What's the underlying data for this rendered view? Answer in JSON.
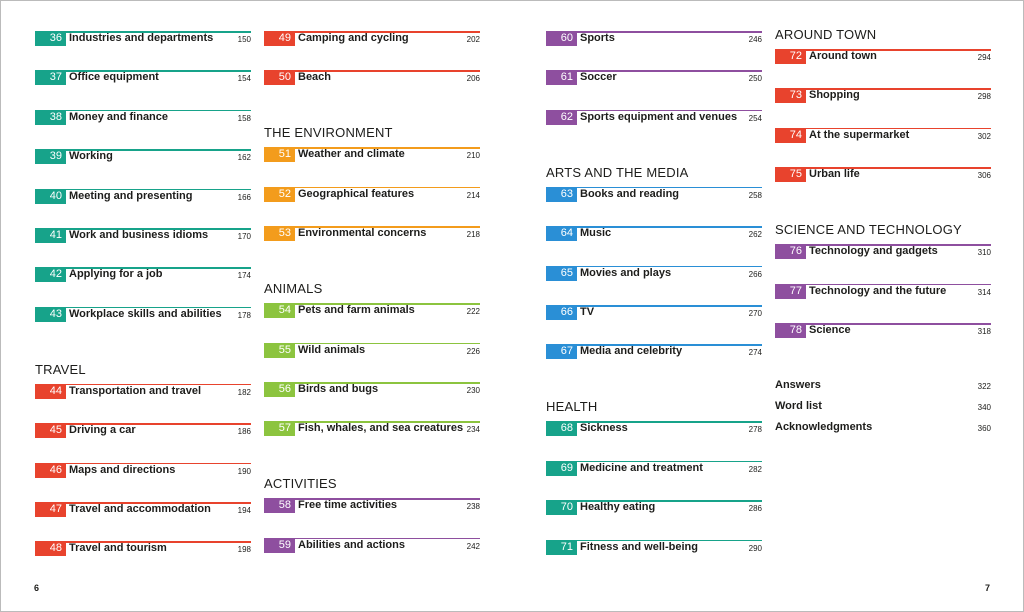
{
  "columns": [
    {
      "sections": [
        {
          "color": "#17a38a",
          "entries": [
            {
              "number": 36,
              "title": "Industries and departments",
              "page": 150
            },
            {
              "number": 37,
              "title": "Office equipment",
              "page": 154
            },
            {
              "number": 38,
              "title": "Money and finance",
              "page": 158
            },
            {
              "number": 39,
              "title": "Working",
              "page": 162
            },
            {
              "number": 40,
              "title": "Meeting and presenting",
              "page": 166
            },
            {
              "number": 41,
              "title": "Work and business idioms",
              "page": 170
            },
            {
              "number": 42,
              "title": "Applying for a job",
              "page": 174
            },
            {
              "number": 43,
              "title": "Workplace skills and abilities",
              "page": 178
            }
          ]
        },
        {
          "heading": "TRAVEL",
          "color": "#e8432d",
          "entries": [
            {
              "number": 44,
              "title": "Transportation and travel",
              "page": 182
            },
            {
              "number": 45,
              "title": "Driving a car",
              "page": 186
            },
            {
              "number": 46,
              "title": "Maps and directions",
              "page": 190
            },
            {
              "number": 47,
              "title": "Travel and accommodation",
              "page": 194
            },
            {
              "number": 48,
              "title": "Travel and tourism",
              "page": 198
            }
          ]
        }
      ]
    },
    {
      "sections": [
        {
          "color": "#e8432d",
          "entries": [
            {
              "number": 49,
              "title": "Camping and cycling",
              "page": 202
            },
            {
              "number": 50,
              "title": "Beach",
              "page": 206
            }
          ]
        },
        {
          "heading": "THE ENVIRONMENT",
          "color": "#f39c1c",
          "entries": [
            {
              "number": 51,
              "title": "Weather and climate",
              "page": 210
            },
            {
              "number": 52,
              "title": "Geographical features",
              "page": 214
            },
            {
              "number": 53,
              "title": "Environmental concerns",
              "page": 218
            }
          ]
        },
        {
          "heading": "ANIMALS",
          "color": "#8cc43f",
          "entries": [
            {
              "number": 54,
              "title": "Pets and farm animals",
              "page": 222
            },
            {
              "number": 55,
              "title": "Wild animals",
              "page": 226
            },
            {
              "number": 56,
              "title": "Birds and bugs",
              "page": 230
            },
            {
              "number": 57,
              "title": "Fish, whales, and sea creatures",
              "page": 234
            }
          ]
        },
        {
          "heading": "ACTIVITIES",
          "color": "#8e4f9f",
          "entries": [
            {
              "number": 58,
              "title": "Free time activities",
              "page": 238
            },
            {
              "number": 59,
              "title": "Abilities and actions",
              "page": 242
            }
          ]
        }
      ]
    },
    {
      "sections": [
        {
          "color": "#8e4f9f",
          "entries": [
            {
              "number": 60,
              "title": "Sports",
              "page": 246
            },
            {
              "number": 61,
              "title": "Soccer",
              "page": 250
            },
            {
              "number": 62,
              "title": "Sports equipment and venues",
              "page": 254
            }
          ]
        },
        {
          "heading": "ARTS AND THE MEDIA",
          "color": "#2a8fd6",
          "entries": [
            {
              "number": 63,
              "title": "Books and reading",
              "page": 258
            },
            {
              "number": 64,
              "title": "Music",
              "page": 262
            },
            {
              "number": 65,
              "title": "Movies and plays",
              "page": 266
            },
            {
              "number": 66,
              "title": "TV",
              "page": 270
            },
            {
              "number": 67,
              "title": "Media and celebrity",
              "page": 274
            }
          ]
        },
        {
          "heading": "HEALTH",
          "color": "#17a38a",
          "entries": [
            {
              "number": 68,
              "title": "Sickness",
              "page": 278
            },
            {
              "number": 69,
              "title": "Medicine and treatment",
              "page": 282
            },
            {
              "number": 70,
              "title": "Healthy eating",
              "page": 286
            },
            {
              "number": 71,
              "title": "Fitness and well-being",
              "page": 290
            }
          ]
        }
      ]
    },
    {
      "sections": [
        {
          "heading": "AROUND TOWN",
          "color": "#e8432d",
          "entries": [
            {
              "number": 72,
              "title": "Around town",
              "page": 294
            },
            {
              "number": 73,
              "title": "Shopping",
              "page": 298
            },
            {
              "number": 74,
              "title": "At the supermarket",
              "page": 302
            },
            {
              "number": 75,
              "title": "Urban life",
              "page": 306
            }
          ]
        },
        {
          "heading": "SCIENCE AND TECHNOLOGY",
          "color": "#8e4f9f",
          "entries": [
            {
              "number": 76,
              "title": "Technology and gadgets",
              "page": 310
            },
            {
              "number": 77,
              "title": "Technology and the future",
              "page": 314
            },
            {
              "number": 78,
              "title": "Science",
              "page": 318
            }
          ]
        }
      ]
    }
  ],
  "back_matter": [
    {
      "title": "Answers",
      "page": 322
    },
    {
      "title": "Word list",
      "page": 340
    },
    {
      "title": "Acknowledgments",
      "page": 360
    }
  ],
  "folios": {
    "left": 6,
    "right": 7
  }
}
